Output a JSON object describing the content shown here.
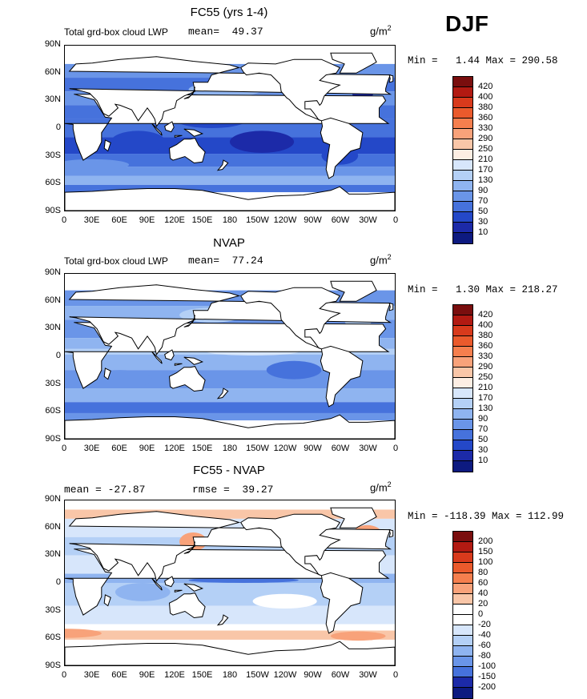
{
  "season_label": "DJF",
  "lat_ticks": [
    "90N",
    "60N",
    "30N",
    "0",
    "30S",
    "60S",
    "90S"
  ],
  "lon_ticks": [
    "0",
    "30E",
    "60E",
    "90E",
    "120E",
    "150E",
    "180",
    "150W",
    "120W",
    "90W",
    "60W",
    "30W",
    "0"
  ],
  "units": {
    "base": "g/m",
    "exp": "2"
  },
  "panels": [
    {
      "title": "FC55 (yrs 1-4)",
      "left_label": "Total grd-box cloud LWP",
      "stat_label": "mean=  49.37",
      "minmax": "Min =   1.44 Max = 290.58",
      "colorbar_id": "lwp"
    },
    {
      "title": "NVAP",
      "left_label": "Total grd-box cloud LWP",
      "stat_label": "mean=  77.24",
      "minmax": "Min =   1.30 Max = 218.27",
      "colorbar_id": "lwp"
    },
    {
      "title": "FC55 - NVAP",
      "left_label": "mean = -27.87",
      "stat_label": "rmse =  39.27",
      "minmax": "Min = -118.39 Max = 112.99",
      "colorbar_id": "diff"
    }
  ],
  "colorbars": {
    "lwp": {
      "labels": [
        "420",
        "400",
        "380",
        "360",
        "330",
        "290",
        "250",
        "210",
        "170",
        "130",
        "90",
        "70",
        "50",
        "30",
        "10"
      ],
      "colors": [
        "#7a0e0e",
        "#b21a12",
        "#d83a1c",
        "#ea5a2c",
        "#f57f4e",
        "#f8a27a",
        "#f9c6a8",
        "#fdeee3",
        "#d7e6fb",
        "#b4d0f6",
        "#8fb4f0",
        "#6a95e8",
        "#4672dc",
        "#2448c8",
        "#1c2aa8",
        "#0d1a80"
      ]
    },
    "diff": {
      "labels": [
        "200",
        "150",
        "100",
        "80",
        "60",
        "40",
        "20",
        "0",
        "-20",
        "-40",
        "-60",
        "-80",
        "-100",
        "-150",
        "-200"
      ],
      "colors": [
        "#7a0e0e",
        "#b21a12",
        "#d83a1c",
        "#ea5a2c",
        "#f57f4e",
        "#f8a27a",
        "#f9c6a8",
        "#ffffff",
        "#ffffff",
        "#d7e6fb",
        "#b4d0f6",
        "#8fb4f0",
        "#6a95e8",
        "#4672dc",
        "#1c2aa8",
        "#0d1a80"
      ]
    }
  }
}
